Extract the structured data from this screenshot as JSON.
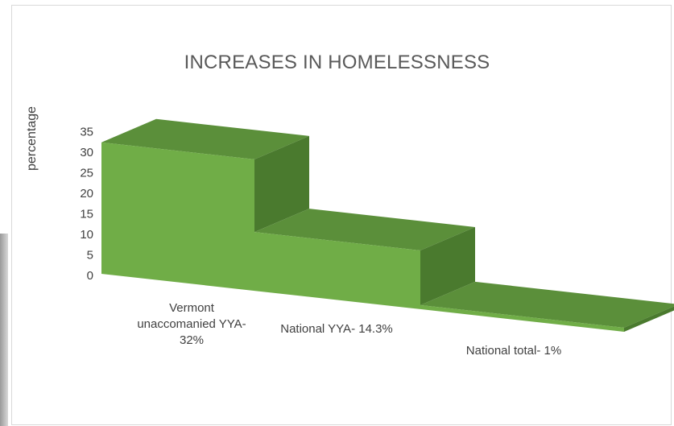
{
  "chart_data": {
    "type": "bar",
    "title": "INCREASES IN HOMELESSNESS",
    "ylabel": "percentage",
    "xlabel": "",
    "categories": [
      "Vermont unaccomanied YYA- 32%",
      "National YYA- 14.3%",
      "National total- 1%"
    ],
    "category_lines": [
      [
        "Vermont",
        "unaccomanied YYA-",
        "32%"
      ],
      [
        "National YYA-  14.3%"
      ],
      [
        "National total- 1%"
      ]
    ],
    "values": [
      32,
      14.3,
      1
    ],
    "ylim": [
      0,
      35
    ],
    "yticks": [
      0,
      5,
      10,
      15,
      20,
      25,
      30,
      35
    ],
    "style": "3d-step",
    "legend": "none",
    "colors": {
      "front": "#70ad47",
      "top": "#5b8f3a",
      "side": "#4a7a2e"
    }
  }
}
